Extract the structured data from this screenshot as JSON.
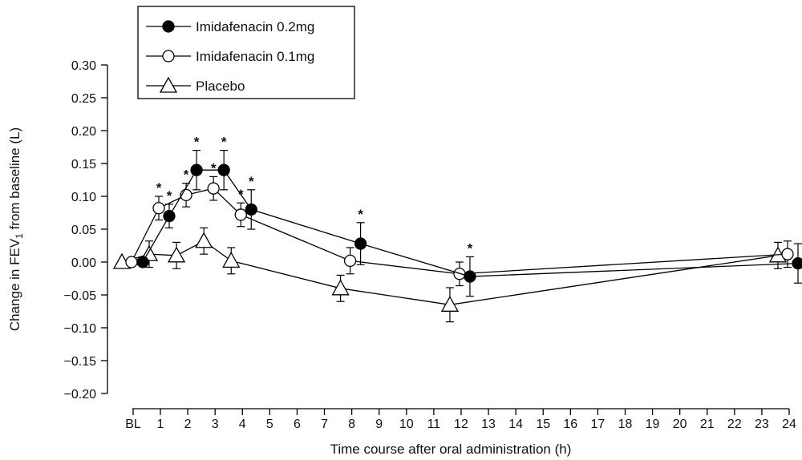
{
  "chart_data": {
    "type": "line",
    "title": "",
    "xlabel": "Time course after oral administration (h)",
    "ylabel": {
      "prefix": "Change in FEV",
      "subscript": "1",
      "suffix": " from baseline (L)"
    },
    "ylim": [
      -0.2,
      0.3
    ],
    "yticks": [
      "0.30",
      "0.25",
      "0.20",
      "0.15",
      "0.10",
      "0.05",
      "0.00",
      "−0.05",
      "−0.10",
      "−0.15",
      "−0.20"
    ],
    "ytick_values": [
      0.3,
      0.25,
      0.2,
      0.15,
      0.1,
      0.05,
      0.0,
      -0.05,
      -0.1,
      -0.15,
      -0.2
    ],
    "xticks": [
      "BL",
      "1",
      "2",
      "3",
      "4",
      "5",
      "6",
      "7",
      "8",
      "9",
      "10",
      "11",
      "12",
      "13",
      "14",
      "15",
      "16",
      "17",
      "18",
      "19",
      "20",
      "21",
      "22",
      "23",
      "24"
    ],
    "xtick_values": [
      0,
      1,
      2,
      3,
      4,
      5,
      6,
      7,
      8,
      9,
      10,
      11,
      12,
      13,
      14,
      15,
      16,
      17,
      18,
      19,
      20,
      21,
      22,
      23,
      24
    ],
    "legend_position": "top-left",
    "grid": false,
    "series": [
      {
        "name": "Imidafenacin 0.2mg",
        "marker": "filled-circle",
        "points": [
          {
            "x": 0,
            "y": 0.0,
            "err": 0,
            "sig": false
          },
          {
            "x": 1,
            "y": 0.07,
            "err": 0.018,
            "sig": true
          },
          {
            "x": 2,
            "y": 0.14,
            "err": 0.03,
            "sig": true
          },
          {
            "x": 3,
            "y": 0.14,
            "err": 0.03,
            "sig": true
          },
          {
            "x": 4,
            "y": 0.08,
            "err": 0.03,
            "sig": true
          },
          {
            "x": 8,
            "y": 0.028,
            "err": 0.032,
            "sig": true
          },
          {
            "x": 12,
            "y": -0.022,
            "err": 0.03,
            "sig": true
          },
          {
            "x": 24,
            "y": -0.002,
            "err": 0.03,
            "sig": false
          }
        ]
      },
      {
        "name": "Imidafenacin 0.1mg",
        "marker": "open-circle",
        "points": [
          {
            "x": 0,
            "y": 0.0,
            "err": 0,
            "sig": false
          },
          {
            "x": 1,
            "y": 0.082,
            "err": 0.018,
            "sig": true
          },
          {
            "x": 2,
            "y": 0.102,
            "err": 0.018,
            "sig": true
          },
          {
            "x": 3,
            "y": 0.112,
            "err": 0.018,
            "sig": true
          },
          {
            "x": 4,
            "y": 0.072,
            "err": 0.018,
            "sig": true
          },
          {
            "x": 8,
            "y": 0.002,
            "err": 0.02,
            "sig": false
          },
          {
            "x": 12,
            "y": -0.018,
            "err": 0.018,
            "sig": false
          },
          {
            "x": 24,
            "y": 0.012,
            "err": 0.02,
            "sig": false
          }
        ]
      },
      {
        "name": "Placebo",
        "marker": "open-triangle",
        "points": [
          {
            "x": 0,
            "y": 0.0,
            "err": 0,
            "sig": false
          },
          {
            "x": 1,
            "y": 0.012,
            "err": 0.02,
            "sig": false
          },
          {
            "x": 2,
            "y": 0.01,
            "err": 0.02,
            "sig": false
          },
          {
            "x": 3,
            "y": 0.032,
            "err": 0.02,
            "sig": false
          },
          {
            "x": 4,
            "y": 0.002,
            "err": 0.02,
            "sig": false
          },
          {
            "x": 8,
            "y": -0.04,
            "err": 0.02,
            "sig": false
          },
          {
            "x": 12,
            "y": -0.065,
            "err": 0.026,
            "sig": false
          },
          {
            "x": 24,
            "y": 0.01,
            "err": 0.02,
            "sig": false
          }
        ]
      }
    ],
    "significance_marker": "*"
  }
}
